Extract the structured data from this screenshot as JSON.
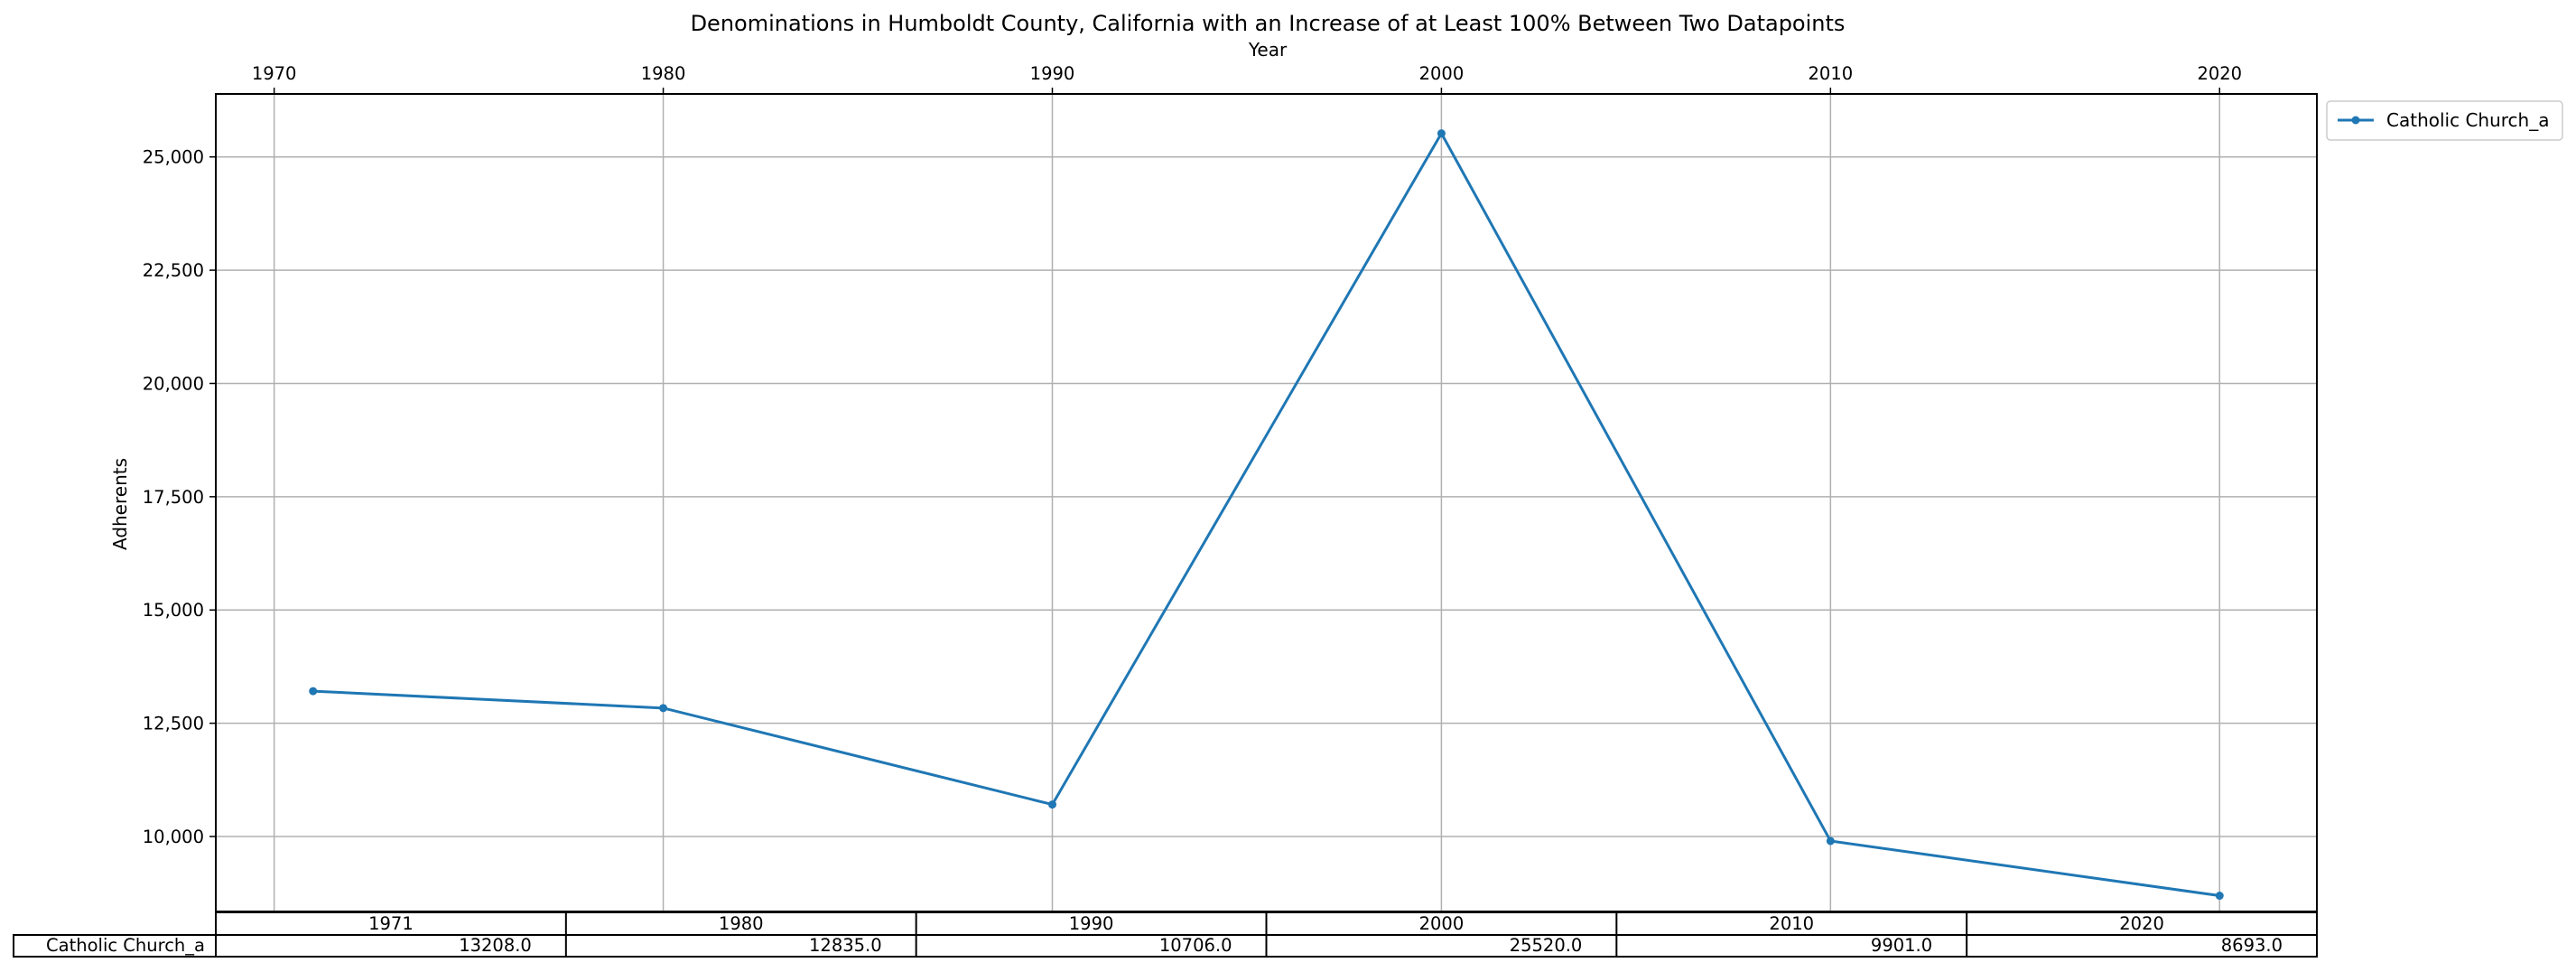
{
  "chart_data": {
    "type": "line",
    "title": "Denominations in Humboldt County, California with an Increase of at Least 100% Between Two Datapoints",
    "xlabel": "Year",
    "ylabel": "Adherents",
    "x_axis_position": "top",
    "x_ticks": [
      1970,
      1980,
      1990,
      2000,
      2010,
      2020
    ],
    "x_tick_labels": [
      "1970",
      "1980",
      "1990",
      "2000",
      "2010",
      "2020"
    ],
    "xlim": [
      1968.5,
      2022.5
    ],
    "y_ticks": [
      10000,
      12500,
      15000,
      17500,
      20000,
      22500,
      25000
    ],
    "y_tick_labels": [
      "10,000",
      "12,500",
      "15,000",
      "17,500",
      "20,000",
      "22,500",
      "25,000"
    ],
    "ylim": [
      8345,
      26390
    ],
    "grid": true,
    "legend_position": "outside-top-right",
    "x": [
      1971,
      1980,
      1990,
      2000,
      2010,
      2020
    ],
    "series": [
      {
        "name": "Catholic Church_a",
        "color": "#1f77b4",
        "marker": "dot",
        "values": [
          13208.0,
          12835.0,
          10706.0,
          25520.0,
          9901.0,
          8693.0
        ]
      }
    ],
    "table": {
      "columns": [
        "1971",
        "1980",
        "1990",
        "2000",
        "2010",
        "2020"
      ],
      "rows": [
        {
          "label": "Catholic Church_a",
          "cells": [
            "13208.0",
            "12835.0",
            "10706.0",
            "25520.0",
            "9901.0",
            "8693.0"
          ]
        }
      ]
    }
  }
}
